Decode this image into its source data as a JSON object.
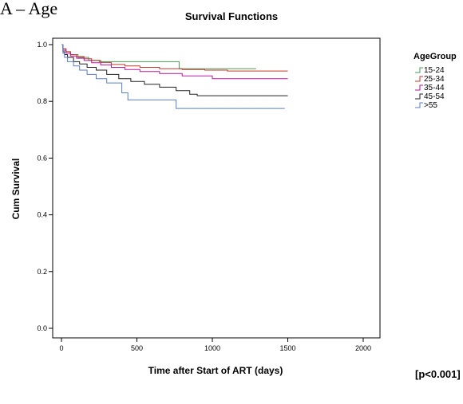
{
  "panel_tag": "A – Age",
  "chart_data": {
    "type": "line",
    "title": "Survival Functions",
    "xlabel": "Time after Start of ART (days)",
    "ylabel": "Cum Survival",
    "xlim": [
      0,
      2000
    ],
    "ylim": [
      0,
      1.0
    ],
    "x_ticks": [
      0,
      500,
      1000,
      1500,
      2000
    ],
    "y_ticks": [
      0.0,
      0.2,
      0.4,
      0.6,
      0.8,
      1.0
    ],
    "x_tick_labels": [
      "0",
      "500",
      "1000",
      "1500",
      "2000"
    ],
    "y_tick_labels": [
      "0.0",
      "0.2",
      "0.4",
      "0.6",
      "0.8",
      "1.0"
    ],
    "step": true,
    "grid": false,
    "legend": {
      "title": "AgeGroup",
      "placement": "right"
    },
    "series": [
      {
        "name": "15-24",
        "color": "#4e9a5a",
        "x": [
          0,
          10,
          30,
          60,
          110,
          180,
          250,
          780,
          780,
          1290
        ],
        "y": [
          1.0,
          0.985,
          0.975,
          0.965,
          0.955,
          0.945,
          0.94,
          0.94,
          0.915,
          0.915
        ]
      },
      {
        "name": "25-34",
        "color": "#c0392b",
        "x": [
          0,
          10,
          30,
          60,
          100,
          150,
          200,
          260,
          330,
          420,
          520,
          650,
          800,
          950,
          1100,
          1500
        ],
        "y": [
          1.0,
          0.985,
          0.975,
          0.965,
          0.958,
          0.95,
          0.944,
          0.937,
          0.93,
          0.925,
          0.92,
          0.915,
          0.912,
          0.91,
          0.907,
          0.907
        ]
      },
      {
        "name": "35-44",
        "color": "#b5179e",
        "x": [
          0,
          10,
          30,
          60,
          100,
          150,
          200,
          260,
          330,
          420,
          520,
          650,
          800,
          1000,
          1500
        ],
        "y": [
          1.0,
          0.98,
          0.97,
          0.96,
          0.952,
          0.944,
          0.936,
          0.928,
          0.92,
          0.912,
          0.905,
          0.898,
          0.89,
          0.88,
          0.88
        ]
      },
      {
        "name": "45-54",
        "color": "#222222",
        "x": [
          0,
          10,
          20,
          40,
          80,
          120,
          170,
          230,
          300,
          380,
          460,
          550,
          650,
          760,
          850,
          900,
          1500
        ],
        "y": [
          1.0,
          0.975,
          0.965,
          0.955,
          0.94,
          0.932,
          0.92,
          0.91,
          0.895,
          0.88,
          0.87,
          0.86,
          0.85,
          0.838,
          0.825,
          0.82,
          0.82
        ]
      },
      {
        "name": ">55",
        "color": "#5a7fc0",
        "x": [
          0,
          10,
          20,
          40,
          80,
          120,
          170,
          230,
          300,
          400,
          440,
          760,
          1480
        ],
        "y": [
          1.0,
          0.97,
          0.955,
          0.94,
          0.925,
          0.91,
          0.895,
          0.88,
          0.865,
          0.83,
          0.805,
          0.775,
          0.775
        ]
      }
    ],
    "annotation": "[p<0.001]"
  }
}
